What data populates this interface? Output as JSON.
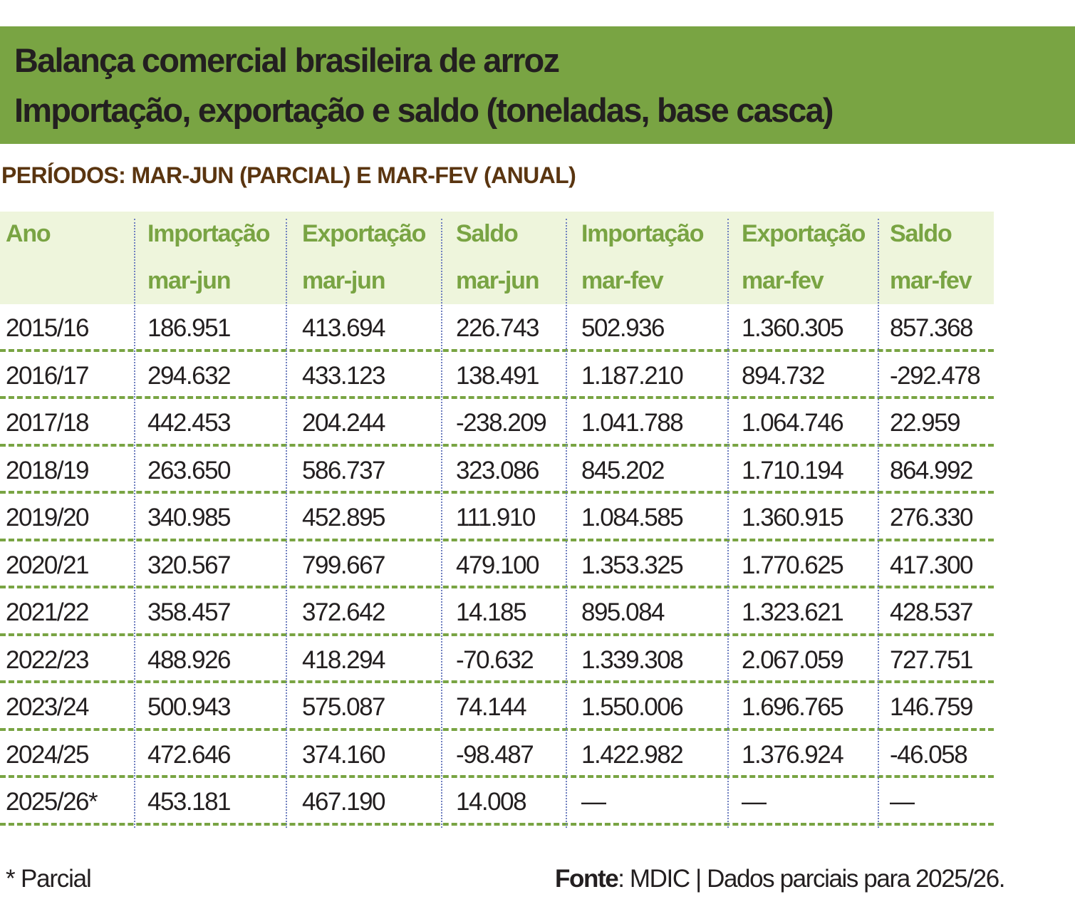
{
  "header": {
    "title_line1": "Balança comercial brasileira de arroz",
    "title_line2": "Importação, exportação e saldo (toneladas, base casca)",
    "subtitle": "PERÍODOS: MAR-JUN (PARCIAL) E MAR-FEV (ANUAL)"
  },
  "colors": {
    "title_bar": "#79a443",
    "header_bg": "#eef5dc",
    "header_text": "#79a443",
    "subtitle": "#5a3510"
  },
  "chart_data": {
    "type": "table",
    "title": "Balança comercial brasileira de arroz — Importação, exportação e saldo (toneladas, base casca)",
    "columns": [
      {
        "l1": "Ano",
        "l2": ""
      },
      {
        "l1": "Importação",
        "l2": "mar-jun"
      },
      {
        "l1": "Exportação",
        "l2": "mar-jun"
      },
      {
        "l1": "Saldo",
        "l2": "mar-jun"
      },
      {
        "l1": "Importação",
        "l2": "mar-fev"
      },
      {
        "l1": "Exportação",
        "l2": "mar-fev"
      },
      {
        "l1": "Saldo",
        "l2": "mar-fev"
      }
    ],
    "rows": [
      [
        "2015/16",
        "186.951",
        "413.694",
        "226.743",
        "502.936",
        "1.360.305",
        "857.368"
      ],
      [
        "2016/17",
        "294.632",
        "433.123",
        "138.491",
        "1.187.210",
        "894.732",
        "-292.478"
      ],
      [
        "2017/18",
        "442.453",
        "204.244",
        "-238.209",
        "1.041.788",
        "1.064.746",
        "22.959"
      ],
      [
        "2018/19",
        "263.650",
        "586.737",
        "323.086",
        "845.202",
        "1.710.194",
        "864.992"
      ],
      [
        "2019/20",
        "340.985",
        "452.895",
        "111.910",
        "1.084.585",
        "1.360.915",
        "276.330"
      ],
      [
        "2020/21",
        "320.567",
        "799.667",
        "479.100",
        "1.353.325",
        "1.770.625",
        "417.300"
      ],
      [
        "2021/22",
        "358.457",
        "372.642",
        "14.185",
        "895.084",
        "1.323.621",
        "428.537"
      ],
      [
        "2022/23",
        "488.926",
        "418.294",
        "-70.632",
        "1.339.308",
        "2.067.059",
        "727.751"
      ],
      [
        "2023/24",
        "500.943",
        "575.087",
        "74.144",
        "1.550.006",
        "1.696.765",
        "146.759"
      ],
      [
        "2024/25",
        "472.646",
        "374.160",
        "-98.487",
        "1.422.982",
        "1.376.924",
        "-46.058"
      ],
      [
        "2025/26*",
        "453.181",
        "467.190",
        "14.008",
        "—",
        "—",
        "—"
      ]
    ]
  },
  "footer": {
    "note": "* Parcial",
    "source_label": "Fonte",
    "source_text": ": MDIC | Dados parciais para 2025/26."
  }
}
